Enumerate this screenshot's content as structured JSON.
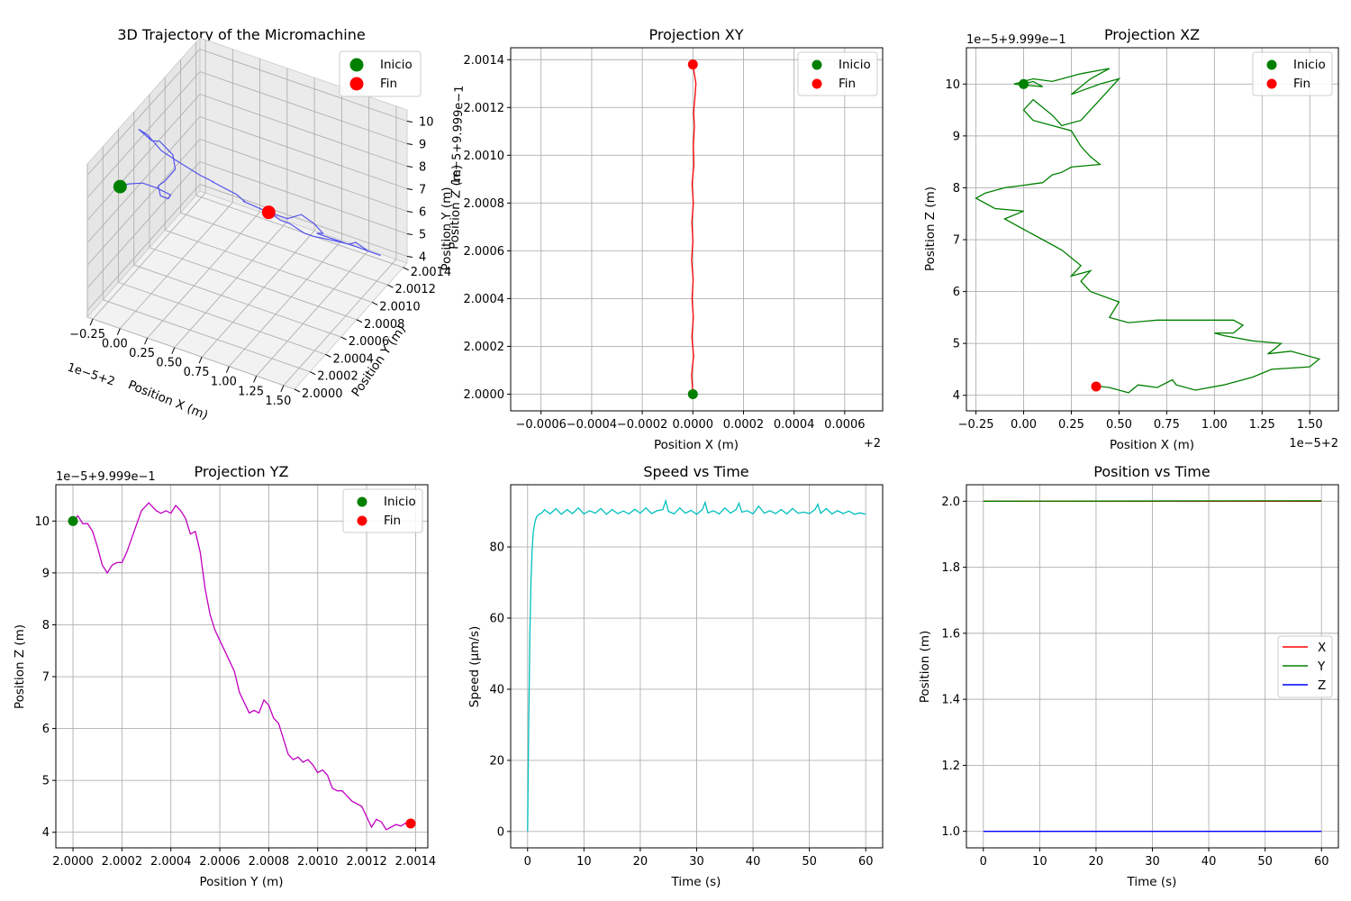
{
  "figure": {
    "width": 1500,
    "height": 1000
  },
  "chart_data": [
    {
      "id": "p3d",
      "type": "line",
      "title": "3D Trajectory of the Micromachine",
      "xlabel": "Position X (m)",
      "ylabel": "Position Y (m)",
      "zlabel": "Position Z (m)",
      "x_offset_text": "1e−5+2",
      "z_offset_text": "1e−5+9.999e−1",
      "x_ticks": [
        "−0.25",
        "0.00",
        "0.25",
        "0.50",
        "0.75",
        "1.00",
        "1.25",
        "1.50"
      ],
      "y_ticks": [
        "2.0000",
        "2.0002",
        "2.0004",
        "2.0006",
        "2.0008",
        "2.0010",
        "2.0012",
        "2.0014"
      ],
      "z_ticks": [
        "4",
        "5",
        "6",
        "7",
        "8",
        "9",
        "10"
      ],
      "xlim": [
        -0.3,
        1.6
      ],
      "ylim": [
        2.0,
        2.00145
      ],
      "zlim": [
        3.7,
        10.5
      ],
      "grid": true,
      "legend": {
        "placement": "upper-right",
        "entries": [
          "Inicio",
          "Fin"
        ]
      },
      "series": [
        {
          "name": "trajectory",
          "color": "#4444ee",
          "x": [
            0.0,
            0.05,
            0.15,
            0.25,
            0.35,
            0.3,
            0.2,
            0.15,
            0.18,
            0.25,
            0.2,
            0.05,
            -0.05,
            -0.2,
            -0.15,
            -0.05,
            0.05,
            0.25,
            0.35,
            0.3,
            0.5,
            0.55,
            0.5,
            0.7,
            0.85,
            0.95,
            1.05,
            1.12,
            1.05,
            1.15,
            1.2,
            1.3,
            1.35,
            1.45,
            1.55,
            1.5,
            1.4,
            1.3,
            1.2,
            1.0,
            0.85,
            0.75,
            0.6,
            0.5,
            0.42,
            0.38
          ],
          "y": [
            2.0,
            2.00004,
            2.00008,
            2.00012,
            2.00016,
            2.0002,
            2.00024,
            2.00028,
            2.00032,
            2.00036,
            2.0004,
            2.00044,
            2.00048,
            2.00052,
            2.00056,
            2.0006,
            2.00064,
            2.00068,
            2.00072,
            2.00076,
            2.0008,
            2.00084,
            2.00088,
            2.00092,
            2.00096,
            2.001,
            2.00102,
            2.00104,
            2.00106,
            2.00108,
            2.0011,
            2.00112,
            2.00114,
            2.00116,
            2.00118,
            2.0012,
            2.00122,
            2.00124,
            2.00126,
            2.00128,
            2.0013,
            2.00132,
            2.00134,
            2.00136,
            2.00137,
            2.00138
          ],
          "z": [
            10.0,
            10.05,
            10.1,
            9.9,
            9.6,
            9.2,
            9.0,
            9.2,
            9.3,
            9.8,
            10.2,
            10.4,
            10.1,
            10.2,
            9.9,
            9.2,
            8.8,
            8.3,
            8.0,
            7.8,
            7.4,
            7.0,
            6.8,
            6.5,
            6.3,
            6.5,
            6.2,
            5.8,
            5.6,
            5.5,
            5.4,
            5.3,
            5.4,
            5.1,
            5.0,
            4.9,
            4.8,
            4.7,
            4.6,
            4.4,
            4.2,
            4.1,
            4.2,
            4.1,
            4.2,
            4.17
          ]
        }
      ],
      "markers": [
        {
          "name": "Inicio",
          "color": "#008000",
          "x": 0.0,
          "y": 2.0,
          "z": 10.0
        },
        {
          "name": "Fin",
          "color": "#ff0000",
          "x": 0.38,
          "y": 2.00138,
          "z": 4.17
        }
      ]
    },
    {
      "id": "pxy",
      "type": "line",
      "title": "Projection XY",
      "xlabel": "Position X (m)",
      "ylabel": "Position Y (m)",
      "x_offset_text": "+2",
      "x_ticks": [
        -0.0006,
        -0.0004,
        -0.0002,
        0.0,
        0.0002,
        0.0004,
        0.0006
      ],
      "x_tick_labels": [
        "−0.0006",
        "−0.0004",
        "−0.0002",
        "0.0000",
        "0.0002",
        "0.0004",
        "0.0006"
      ],
      "y_ticks": [
        2.0,
        2.0002,
        2.0004,
        2.0006,
        2.0008,
        2.001,
        2.0012,
        2.0014
      ],
      "y_tick_labels": [
        "2.0000",
        "2.0002",
        "2.0004",
        "2.0006",
        "2.0008",
        "2.0010",
        "2.0012",
        "2.0014"
      ],
      "xlim": [
        -0.00072,
        0.00075
      ],
      "ylim": [
        1.99993,
        2.00145
      ],
      "grid": true,
      "legend": {
        "placement": "upper-right",
        "entries": [
          "Inicio",
          "Fin"
        ]
      },
      "series": [
        {
          "name": "trajectory",
          "color": "#ff0000",
          "x": [
            0.0,
            -5e-06,
            3e-06,
            -4e-06,
            2e-06,
            -3e-06,
            1e-06,
            -5e-06,
            0.0,
            -4e-06,
            2e-06,
            -3e-06,
            4e-06,
            2e-06,
            6e-06,
            3e-06,
            8e-06,
            1.2e-05,
            6e-06,
            0.0
          ],
          "y": [
            2.0,
            2.00008,
            2.00016,
            2.00024,
            2.00032,
            2.0004,
            2.00048,
            2.00056,
            2.00064,
            2.00072,
            2.0008,
            2.00088,
            2.00096,
            2.00104,
            2.00112,
            2.00118,
            2.00124,
            2.0013,
            2.00134,
            2.00138
          ]
        }
      ],
      "markers": [
        {
          "name": "Inicio",
          "color": "#008000",
          "x": 0.0,
          "y": 2.0
        },
        {
          "name": "Fin",
          "color": "#ff0000",
          "x": 0.0,
          "y": 2.00138
        }
      ]
    },
    {
      "id": "pxz",
      "type": "line",
      "title": "Projection XZ",
      "xlabel": "Position X (m)",
      "ylabel": "Position Z (m)",
      "x_offset_text": "1e−5+2",
      "y_offset_text": "1e−5+9.999e−1",
      "x_ticks": [
        -0.25,
        0.0,
        0.25,
        0.5,
        0.75,
        1.0,
        1.25,
        1.5
      ],
      "x_tick_labels": [
        "−0.25",
        "0.00",
        "0.25",
        "0.50",
        "0.75",
        "1.00",
        "1.25",
        "1.50"
      ],
      "y_ticks": [
        4,
        5,
        6,
        7,
        8,
        9,
        10
      ],
      "y_tick_labels": [
        "4",
        "5",
        "6",
        "7",
        "8",
        "9",
        "10"
      ],
      "xlim": [
        -0.3,
        1.65
      ],
      "ylim": [
        3.7,
        10.7
      ],
      "grid": true,
      "legend": {
        "placement": "upper-right",
        "entries": [
          "Inicio",
          "Fin"
        ]
      },
      "series": [
        {
          "name": "trajectory",
          "color": "#008000",
          "x": [
            0.0,
            0.05,
            0.1,
            -0.05,
            0.05,
            0.15,
            0.2,
            0.3,
            0.45,
            0.35,
            0.25,
            0.4,
            0.5,
            0.45,
            0.4,
            0.35,
            0.3,
            0.2,
            0.15,
            0.05,
            0.0,
            0.05,
            0.15,
            0.25,
            0.3,
            0.35,
            0.4,
            0.25,
            0.2,
            0.15,
            0.1,
            0.0,
            -0.1,
            -0.2,
            -0.25,
            -0.15,
            0.0,
            -0.1,
            0.0,
            0.1,
            0.2,
            0.3,
            0.25,
            0.35,
            0.3,
            0.35,
            0.5,
            0.45,
            0.55,
            0.7,
            0.9,
            1.1,
            1.15,
            1.1,
            1.0,
            1.05,
            1.2,
            1.35,
            1.3,
            1.28,
            1.4,
            1.55,
            1.5,
            1.3,
            1.2,
            1.05,
            0.9,
            0.8,
            0.78,
            0.7,
            0.6,
            0.55,
            0.5,
            0.45,
            0.4,
            0.38
          ],
          "y": [
            10.0,
            10.05,
            9.95,
            10.0,
            10.1,
            10.05,
            10.1,
            10.2,
            10.3,
            10.1,
            9.8,
            10.0,
            10.1,
            9.9,
            9.7,
            9.5,
            9.3,
            9.2,
            9.4,
            9.7,
            9.5,
            9.3,
            9.2,
            9.1,
            8.8,
            8.6,
            8.45,
            8.4,
            8.3,
            8.25,
            8.1,
            8.05,
            8.0,
            7.9,
            7.8,
            7.6,
            7.55,
            7.4,
            7.2,
            7.0,
            6.8,
            6.5,
            6.3,
            6.4,
            6.2,
            6.0,
            5.8,
            5.5,
            5.4,
            5.45,
            5.45,
            5.45,
            5.35,
            5.2,
            5.2,
            5.15,
            5.05,
            5.0,
            4.85,
            4.8,
            4.85,
            4.7,
            4.55,
            4.5,
            4.35,
            4.2,
            4.1,
            4.2,
            4.3,
            4.15,
            4.2,
            4.05,
            4.1,
            4.15,
            4.17,
            4.17
          ]
        }
      ],
      "markers": [
        {
          "name": "Inicio",
          "color": "#008000",
          "x": 0.0,
          "y": 10.0
        },
        {
          "name": "Fin",
          "color": "#ff0000",
          "x": 0.38,
          "y": 4.17
        }
      ]
    },
    {
      "id": "pyz",
      "type": "line",
      "title": "Projection YZ",
      "xlabel": "Position Y (m)",
      "ylabel": "Position Z (m)",
      "y_offset_text": "1e−5+9.999e−1",
      "x_ticks": [
        2.0,
        2.0002,
        2.0004,
        2.0006,
        2.0008,
        2.001,
        2.0012,
        2.0014
      ],
      "x_tick_labels": [
        "2.0000",
        "2.0002",
        "2.0004",
        "2.0006",
        "2.0008",
        "2.0010",
        "2.0012",
        "2.0014"
      ],
      "y_ticks": [
        4,
        5,
        6,
        7,
        8,
        9,
        10
      ],
      "y_tick_labels": [
        "4",
        "5",
        "6",
        "7",
        "8",
        "9",
        "10"
      ],
      "xlim": [
        1.99993,
        2.00145
      ],
      "ylim": [
        3.7,
        10.7
      ],
      "grid": true,
      "legend": {
        "placement": "upper-right",
        "entries": [
          "Inicio",
          "Fin"
        ]
      },
      "series": [
        {
          "name": "trajectory",
          "color": "#bf00bf",
          "x": [
            2.0,
            2.00002,
            2.00004,
            2.00006,
            2.00008,
            2.0001,
            2.00012,
            2.00014,
            2.00016,
            2.00018,
            2.0002,
            2.00022,
            2.00025,
            2.00028,
            2.00031,
            2.00034,
            2.00036,
            2.00038,
            2.0004,
            2.00042,
            2.00044,
            2.00046,
            2.00048,
            2.0005,
            2.00052,
            2.00054,
            2.00056,
            2.00058,
            2.0006,
            2.00062,
            2.00064,
            2.00066,
            2.00068,
            2.0007,
            2.00072,
            2.00074,
            2.00076,
            2.00078,
            2.0008,
            2.00082,
            2.00084,
            2.00086,
            2.00088,
            2.0009,
            2.00092,
            2.00094,
            2.00096,
            2.00098,
            2.001,
            2.00102,
            2.00104,
            2.00106,
            2.00108,
            2.0011,
            2.00112,
            2.00114,
            2.00116,
            2.00118,
            2.0012,
            2.00122,
            2.00124,
            2.00126,
            2.00128,
            2.0013,
            2.00132,
            2.00134,
            2.00136,
            2.00138
          ],
          "y": [
            10.0,
            10.1,
            9.95,
            9.95,
            9.8,
            9.5,
            9.15,
            9.0,
            9.15,
            9.2,
            9.2,
            9.4,
            9.8,
            10.2,
            10.35,
            10.2,
            10.15,
            10.2,
            10.15,
            10.3,
            10.2,
            10.05,
            9.75,
            9.8,
            9.4,
            8.7,
            8.2,
            7.9,
            7.7,
            7.5,
            7.3,
            7.1,
            6.7,
            6.5,
            6.3,
            6.35,
            6.3,
            6.55,
            6.45,
            6.2,
            6.1,
            5.8,
            5.5,
            5.4,
            5.45,
            5.35,
            5.4,
            5.3,
            5.15,
            5.2,
            5.1,
            4.85,
            4.8,
            4.8,
            4.7,
            4.6,
            4.55,
            4.5,
            4.3,
            4.1,
            4.25,
            4.2,
            4.05,
            4.1,
            4.15,
            4.12,
            4.18,
            4.17
          ]
        }
      ],
      "markers": [
        {
          "name": "Inicio",
          "color": "#008000",
          "x": 2.0,
          "y": 10.0
        },
        {
          "name": "Fin",
          "color": "#ff0000",
          "x": 2.00138,
          "y": 4.17
        }
      ]
    },
    {
      "id": "pspd",
      "type": "line",
      "title": "Speed vs Time",
      "xlabel": "Time (s)",
      "ylabel": "Speed (μm/s)",
      "x_ticks": [
        0,
        10,
        20,
        30,
        40,
        50,
        60
      ],
      "x_tick_labels": [
        "0",
        "10",
        "20",
        "30",
        "40",
        "50",
        "60"
      ],
      "y_ticks": [
        0,
        20,
        40,
        60,
        80
      ],
      "y_tick_labels": [
        "0",
        "20",
        "40",
        "60",
        "80"
      ],
      "xlim": [
        -3,
        63
      ],
      "ylim": [
        -4.6,
        97.5
      ],
      "grid": true,
      "legend": null,
      "series": [
        {
          "name": "speed",
          "color": "#00bfbf",
          "x": [
            0,
            0.2,
            0.4,
            0.6,
            0.8,
            1.0,
            1.3,
            1.6,
            2.0,
            2.5,
            3,
            4,
            5,
            6,
            7,
            8,
            9,
            10,
            11,
            12,
            13,
            14,
            15,
            16,
            17,
            18,
            19,
            20,
            21,
            22,
            23,
            24,
            24.5,
            25,
            26,
            27,
            28,
            29,
            30,
            31,
            31.5,
            32,
            33,
            34,
            35,
            36,
            37,
            37.5,
            38,
            39,
            40,
            41,
            42,
            43,
            44,
            45,
            46,
            47,
            48,
            49,
            50,
            51,
            51.5,
            52,
            53,
            54,
            55,
            56,
            57,
            58,
            59,
            60
          ],
          "y": [
            0,
            30,
            55,
            70,
            79,
            84,
            87,
            88.5,
            89.2,
            89.5,
            90.5,
            89.3,
            90.8,
            89.2,
            90.5,
            89.4,
            91,
            89.3,
            90.2,
            89.5,
            90.8,
            89.2,
            90.5,
            89.4,
            90.1,
            89.3,
            90.6,
            89.5,
            91,
            89.4,
            90.2,
            90.5,
            93,
            90,
            89.3,
            91,
            89.5,
            90.3,
            89.2,
            90.5,
            92.5,
            89.6,
            90.2,
            89.3,
            91,
            89.5,
            90.5,
            92.3,
            89.8,
            90.2,
            89.3,
            91.5,
            89.5,
            90.2,
            89.4,
            90.5,
            89.3,
            90.8,
            89.5,
            89.8,
            89.4,
            90.5,
            92,
            89.5,
            90.8,
            89.3,
            90.2,
            89.4,
            90.1,
            89.2,
            89.6,
            89.2
          ]
        }
      ]
    },
    {
      "id": "ppos",
      "type": "line",
      "title": "Position vs Time",
      "xlabel": "Time (s)",
      "ylabel": "Position (m)",
      "x_ticks": [
        0,
        10,
        20,
        30,
        40,
        50,
        60
      ],
      "x_tick_labels": [
        "0",
        "10",
        "20",
        "30",
        "40",
        "50",
        "60"
      ],
      "y_ticks": [
        1.0,
        1.2,
        1.4,
        1.6,
        1.8,
        2.0
      ],
      "y_tick_labels": [
        "1.0",
        "1.2",
        "1.4",
        "1.6",
        "1.8",
        "2.0"
      ],
      "xlim": [
        -3,
        63
      ],
      "ylim": [
        0.95,
        2.05
      ],
      "grid": true,
      "legend": {
        "placement": "center-right",
        "entries": [
          "X",
          "Y",
          "Z"
        ]
      },
      "series": [
        {
          "name": "X",
          "color": "#ff0000",
          "x": [
            0,
            60
          ],
          "y": [
            2.0,
            2.0
          ]
        },
        {
          "name": "Y",
          "color": "#008000",
          "x": [
            0,
            60
          ],
          "y": [
            2.0,
            2.0014
          ]
        },
        {
          "name": "Z",
          "color": "#0000ff",
          "x": [
            0,
            60
          ],
          "y": [
            1.0,
            1.0
          ]
        }
      ]
    }
  ]
}
